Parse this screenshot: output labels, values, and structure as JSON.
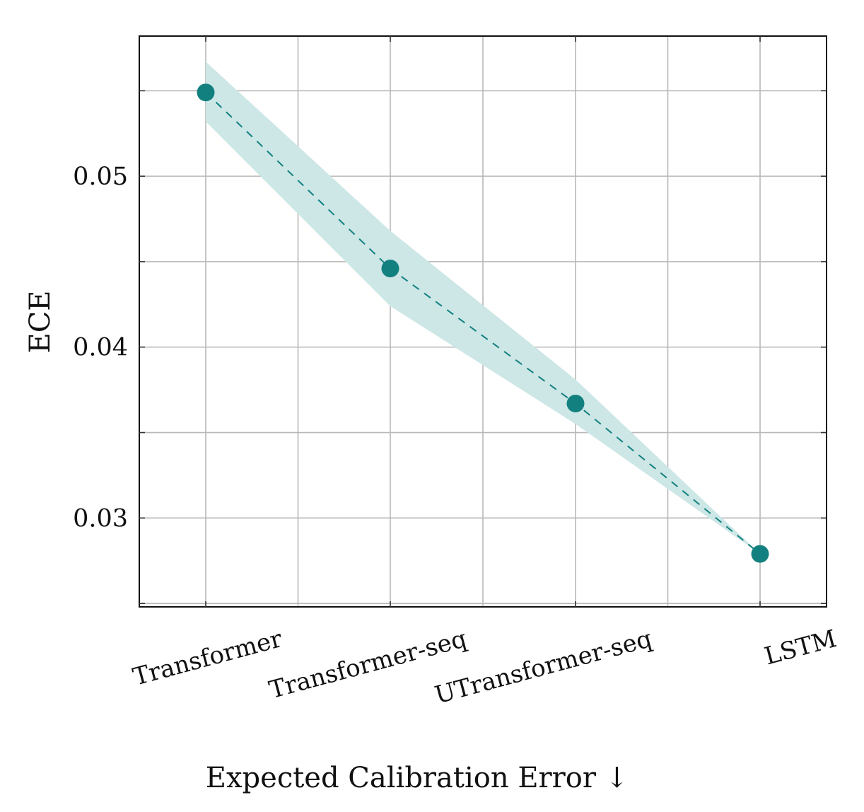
{
  "chart_data": {
    "type": "line",
    "title": "",
    "xlabel": "Expected Calibration Error ↓",
    "ylabel": "ECE",
    "categories": [
      "Transformer",
      "Transformer-seq",
      "UTransformer-seq",
      "LSTM"
    ],
    "series": [
      {
        "values": [
          0.0549,
          0.0446,
          0.0367,
          0.0279
        ],
        "lower": [
          0.0532,
          0.0424,
          0.0355,
          0.0279
        ],
        "upper": [
          0.0567,
          0.0468,
          0.0381,
          0.0279
        ],
        "color": "#138080",
        "band_color": "#cde6e6",
        "line_style": "dashed",
        "marker": "circle"
      }
    ],
    "ylim": [
      0.0248,
      0.0582
    ],
    "yticks": [
      0.03,
      0.04,
      0.05
    ],
    "ytick_labels": [
      "0.03",
      "0.04",
      "0.05"
    ],
    "grid": true
  }
}
